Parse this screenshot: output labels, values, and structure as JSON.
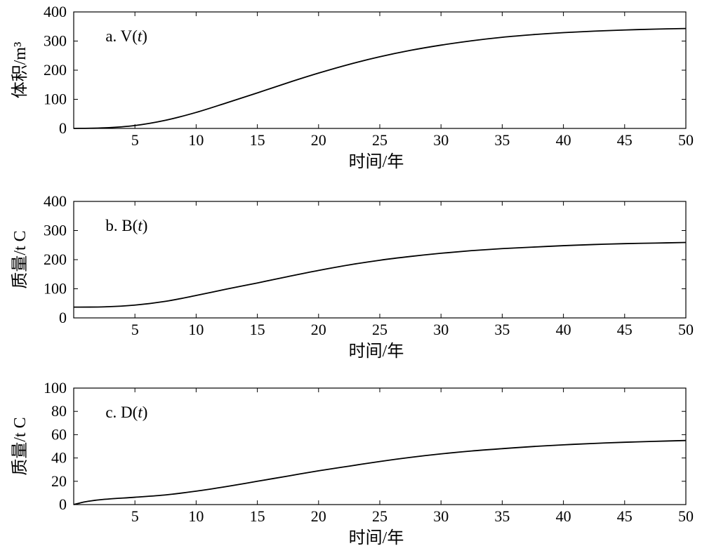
{
  "chart_data": [
    {
      "type": "line",
      "panel_label": "a. V(t)",
      "panel_label_prefix": "a. V(",
      "panel_label_var": "t",
      "panel_label_suffix": ")",
      "xlabel": "时间/年",
      "ylabel": "体积/m³",
      "xlim": [
        0,
        50
      ],
      "ylim": [
        0,
        400
      ],
      "xticks": [
        5,
        10,
        15,
        20,
        25,
        30,
        35,
        40,
        45,
        50
      ],
      "yticks": [
        0,
        100,
        200,
        300,
        400
      ],
      "x": [
        0,
        2.5,
        5,
        7.5,
        10,
        12.5,
        15,
        17.5,
        20,
        22.5,
        25,
        27.5,
        30,
        32.5,
        35,
        37.5,
        40,
        42.5,
        45,
        47.5,
        50
      ],
      "y": [
        0,
        2,
        10,
        28,
        55,
        88,
        122,
        157,
        190,
        220,
        246,
        268,
        286,
        301,
        313,
        322,
        329,
        334,
        338,
        341,
        343
      ]
    },
    {
      "type": "line",
      "panel_label": "b. B(t)",
      "panel_label_prefix": "b. B(",
      "panel_label_var": "t",
      "panel_label_suffix": ")",
      "xlabel": "时间/年",
      "ylabel": "质量/t C",
      "xlim": [
        0,
        50
      ],
      "ylim": [
        0,
        400
      ],
      "xticks": [
        5,
        10,
        15,
        20,
        25,
        30,
        35,
        40,
        45,
        50
      ],
      "yticks": [
        0,
        100,
        200,
        300,
        400
      ],
      "x": [
        0,
        2.5,
        5,
        7.5,
        10,
        12.5,
        15,
        17.5,
        20,
        22.5,
        25,
        27.5,
        30,
        32.5,
        35,
        37.5,
        40,
        42.5,
        45,
        47.5,
        50
      ],
      "y": [
        37,
        38,
        44,
        57,
        77,
        99,
        120,
        142,
        163,
        182,
        198,
        211,
        222,
        231,
        238,
        243,
        248,
        252,
        255,
        257,
        259
      ]
    },
    {
      "type": "line",
      "panel_label": "c. D(t)",
      "panel_label_prefix": "c. D(",
      "panel_label_var": "t",
      "panel_label_suffix": ")",
      "xlabel": "时间/年",
      "ylabel": "质量/t C",
      "xlim": [
        0,
        50
      ],
      "ylim": [
        0,
        100
      ],
      "xticks": [
        5,
        10,
        15,
        20,
        25,
        30,
        35,
        40,
        45,
        50
      ],
      "yticks": [
        0,
        20,
        40,
        60,
        80,
        100
      ],
      "x": [
        0,
        1,
        2.5,
        5,
        7.5,
        10,
        12.5,
        15,
        17.5,
        20,
        22.5,
        25,
        27.5,
        30,
        32.5,
        35,
        37.5,
        40,
        42.5,
        45,
        47.5,
        50
      ],
      "y": [
        0,
        2.5,
        4.5,
        6.3,
        8.3,
        11.5,
        15.5,
        20,
        24.5,
        29,
        33,
        37,
        40.5,
        43.5,
        46,
        48,
        49.8,
        51.3,
        52.5,
        53.5,
        54.3,
        55
      ]
    }
  ]
}
